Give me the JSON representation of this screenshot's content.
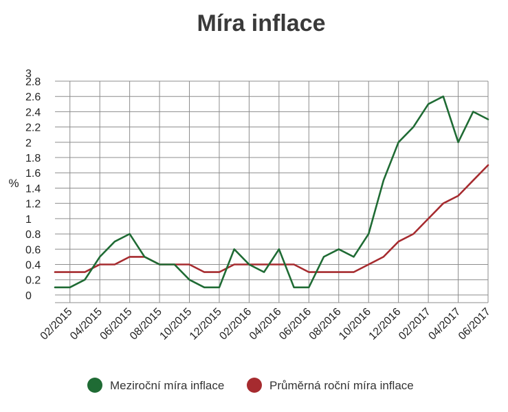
{
  "chart_data": {
    "type": "line",
    "title": "Míra inflace",
    "ylabel": "%",
    "xlabel": "",
    "ylim": [
      -0.1,
      3
    ],
    "yticks": [
      "3",
      "2.8",
      "2.6",
      "2.4",
      "2.2",
      "2",
      "1.8",
      "1.6",
      "1.4",
      "1.2",
      "1",
      "0.8",
      "0.6",
      "0.4",
      "0.2",
      "0"
    ],
    "ytick_values": [
      3,
      2.8,
      2.6,
      2.4,
      2.2,
      2,
      1.8,
      1.6,
      1.4,
      1.2,
      1,
      0.8,
      0.6,
      0.4,
      0.2,
      0
    ],
    "x": [
      "01/2015",
      "02/2015",
      "03/2015",
      "04/2015",
      "05/2015",
      "06/2015",
      "07/2015",
      "08/2015",
      "09/2015",
      "10/2015",
      "11/2015",
      "12/2015",
      "01/2016",
      "02/2016",
      "03/2016",
      "04/2016",
      "05/2016",
      "06/2016",
      "07/2016",
      "08/2016",
      "09/2016",
      "10/2016",
      "11/2016",
      "12/2016",
      "01/2017",
      "02/2017",
      "03/2017",
      "04/2017",
      "05/2017",
      "06/2017"
    ],
    "xtick_labels": [
      "02/2015",
      "04/2015",
      "06/2015",
      "08/2015",
      "10/2015",
      "12/2015",
      "02/2016",
      "04/2016",
      "06/2016",
      "08/2016",
      "10/2016",
      "12/2016",
      "02/2017",
      "04/2017",
      "06/2017"
    ],
    "grid": true,
    "legend_position": "bottom",
    "series": [
      {
        "name": "Meziroční míra inflace",
        "color": "#1f6b34",
        "values": [
          0.1,
          0.1,
          0.2,
          0.5,
          0.7,
          0.8,
          0.5,
          0.4,
          0.4,
          0.2,
          0.1,
          0.1,
          0.6,
          0.4,
          0.3,
          0.6,
          0.1,
          0.1,
          0.5,
          0.6,
          0.5,
          0.8,
          1.5,
          2.0,
          2.2,
          2.5,
          2.6,
          2.0,
          2.4,
          2.3
        ]
      },
      {
        "name": "Průměrná roční míra inflace",
        "color": "#a62b2f",
        "values": [
          0.3,
          0.3,
          0.3,
          0.4,
          0.4,
          0.5,
          0.5,
          0.4,
          0.4,
          0.4,
          0.3,
          0.3,
          0.4,
          0.4,
          0.4,
          0.4,
          0.4,
          0.3,
          0.3,
          0.3,
          0.3,
          0.4,
          0.5,
          0.7,
          0.8,
          1.0,
          1.2,
          1.3,
          1.5,
          1.7
        ]
      }
    ]
  }
}
